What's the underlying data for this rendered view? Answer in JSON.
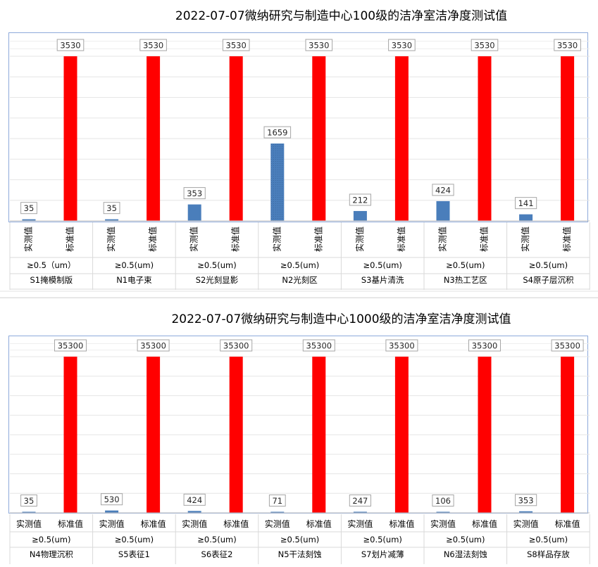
{
  "chart_data": [
    {
      "type": "bar",
      "title": "2022-07-07微纳研究与制造中心100级的洁净室洁净度测试值",
      "categories": [
        "S1掩模制版",
        "N1电子束",
        "S2光刻显影",
        "N2光刻区",
        "S3基片清洗",
        "N3热工艺区",
        "S4原子层沉积"
      ],
      "particle_labels": [
        "≥0.5（um）",
        "≥0.5(um)",
        "≥0.5(um)",
        "≥0.5(um)",
        "≥0.5(um)",
        "≥0.5(um)",
        "≥0.5(um)"
      ],
      "series": [
        {
          "name": "实测值",
          "values": [
            35,
            35,
            353,
            1659,
            212,
            424,
            141
          ],
          "color": "#4a7ebb"
        },
        {
          "name": "标准值",
          "values": [
            3530,
            3530,
            3530,
            3530,
            3530,
            3530,
            3530
          ],
          "color": "#ff0000"
        }
      ],
      "ylim": [
        0,
        3530
      ],
      "grid": true,
      "series_label_orientation": "vertical"
    },
    {
      "type": "bar",
      "title": "2022-07-07微纳研究与制造中心1000级的洁净室洁净度测试值",
      "categories": [
        "N4物理沉积",
        "S5表征1",
        "S6表征2",
        "N5干法刻蚀",
        "S7划片减薄",
        "N6湿法刻蚀",
        "S8样品存放"
      ],
      "particle_labels": [
        "≥0.5(um)",
        "≥0.5(um)",
        "≥0.5(um)",
        "≥0.5(um)",
        "≥0.5(um)",
        "≥0.5(um)",
        "≥0.5(um)"
      ],
      "series": [
        {
          "name": "实测值",
          "values": [
            35,
            530,
            424,
            71,
            247,
            106,
            353
          ],
          "color": "#4a7ebb"
        },
        {
          "name": "标准值",
          "values": [
            35300,
            35300,
            35300,
            35300,
            35300,
            35300,
            35300
          ],
          "color": "#ff0000"
        }
      ],
      "ylim": [
        0,
        35300
      ],
      "grid": true,
      "series_label_orientation": "horizontal"
    }
  ]
}
